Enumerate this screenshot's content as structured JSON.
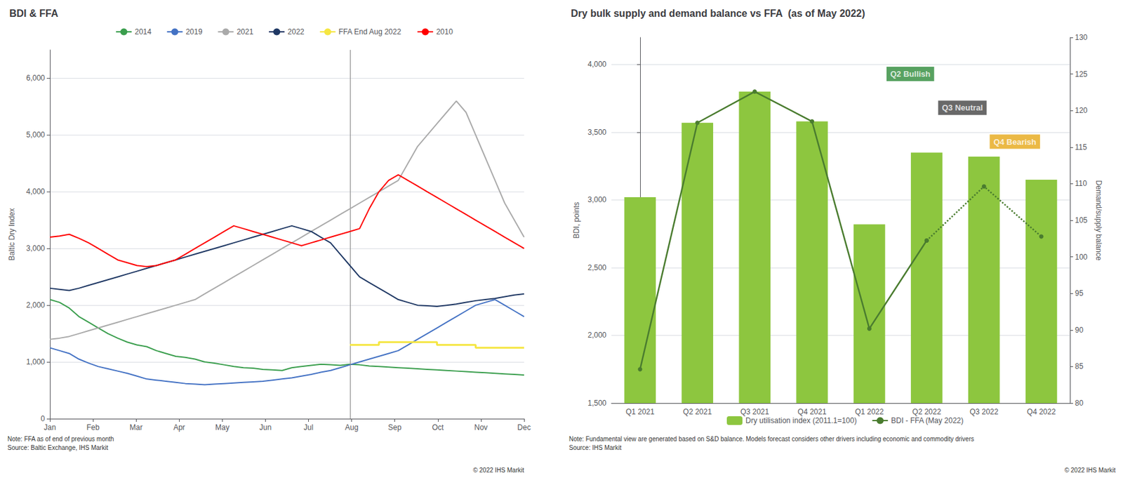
{
  "chart_data": [
    {
      "type": "line",
      "title": "BDI & FFA",
      "ylabel": "Baltic Dry Index",
      "x": [
        0,
        0.22449,
        0.44898,
        0.673469,
        0.897959,
        1.122449,
        1.346939,
        1.571429,
        1.795918,
        2.020408,
        2.244898,
        2.469388,
        2.693878,
        2.918367,
        3.142857,
        3.367347,
        3.591837,
        3.816327,
        4.040816,
        4.265306,
        4.489796,
        4.714286,
        4.938776,
        5.163265,
        5.387755,
        5.612245,
        5.836735,
        6.061224,
        6.285714,
        6.510204,
        6.734694,
        6.959184,
        7.183673,
        7.408163,
        7.632653,
        7.857143,
        8.081633,
        8.306122,
        8.530612,
        8.755102,
        8.979592,
        9.204082,
        9.428571,
        9.653061,
        9.877551,
        10.102041,
        10.326531,
        10.55102,
        10.77551,
        11
      ],
      "xlim": [
        0,
        11
      ],
      "xticks": [
        {
          "value": 0,
          "label": "Jan"
        },
        {
          "value": 1,
          "label": "Feb"
        },
        {
          "value": 2,
          "label": "Mar"
        },
        {
          "value": 3,
          "label": "Apr"
        },
        {
          "value": 4,
          "label": "May"
        },
        {
          "value": 5,
          "label": "Jun"
        },
        {
          "value": 6,
          "label": "Jul"
        },
        {
          "value": 7,
          "label": "Aug"
        },
        {
          "value": 8,
          "label": "Sep"
        },
        {
          "value": 9,
          "label": "Oct"
        },
        {
          "value": 10,
          "label": "Nov"
        },
        {
          "value": 11,
          "label": "Dec"
        }
      ],
      "ylim": [
        0,
        6500
      ],
      "yticks": [
        0,
        {
          "value": 1000,
          "label": "1,000"
        },
        {
          "value": 2000,
          "label": "2,000"
        },
        {
          "value": 3000,
          "label": "3,000"
        },
        {
          "value": 4000,
          "label": "4,000"
        },
        {
          "value": 5000,
          "label": "5,000"
        },
        {
          "value": 6000,
          "label": "6,000"
        }
      ],
      "grid": true,
      "legend": "top",
      "vline_x": 6.959184,
      "series": [
        {
          "name": "2014",
          "color": "#3a9e4d",
          "values": [
            2100,
            2050,
            1950,
            1800,
            1700,
            1600,
            1500,
            1420,
            1350,
            1300,
            1270,
            1200,
            1150,
            1100,
            1080,
            1050,
            1000,
            980,
            950,
            920,
            900,
            890,
            870,
            860,
            850,
            900,
            920,
            940,
            960,
            950,
            940,
            960,
            950,
            930,
            920,
            910,
            900,
            890,
            880,
            870,
            860,
            850,
            840,
            830,
            820,
            810,
            800,
            790,
            780,
            770
          ]
        },
        {
          "name": "2019",
          "color": "#4472c4",
          "values": [
            1250,
            1200,
            1150,
            1050,
            980,
            920,
            880,
            840,
            800,
            750,
            700,
            680,
            660,
            640,
            620,
            610,
            600,
            610,
            620,
            630,
            640,
            650,
            660,
            680,
            700,
            720,
            750,
            780,
            820,
            850,
            900,
            950,
            1000,
            1050,
            1100,
            1150,
            1200,
            1300,
            1400,
            1500,
            1600,
            1700,
            1800,
            1900,
            2000,
            2050,
            2100,
            2000,
            1900,
            1800
          ]
        },
        {
          "name": "2021",
          "color": "#aaaaaa",
          "values": [
            1400,
            1420,
            1450,
            1500,
            1550,
            1600,
            1650,
            1700,
            1750,
            1800,
            1850,
            1900,
            1950,
            2000,
            2050,
            2100,
            2200,
            2300,
            2400,
            2500,
            2600,
            2700,
            2800,
            2900,
            3000,
            3100,
            3200,
            3300,
            3400,
            3500,
            3600,
            3700,
            3800,
            3900,
            4000,
            4100,
            4200,
            4500,
            4800,
            5000,
            5200,
            5400,
            5600,
            5400,
            5000,
            4600,
            4200,
            3800,
            3500,
            3200
          ]
        },
        {
          "name": "2022",
          "color": "#1f3864",
          "values": [
            2300,
            2280,
            2260,
            2300,
            2350,
            2400,
            2450,
            2500,
            2550,
            2600,
            2650,
            2700,
            2750,
            2800,
            2850,
            2900,
            2950,
            3000,
            3050,
            3100,
            3150,
            3200,
            3250,
            3300,
            3350,
            3400,
            3350,
            3300,
            3200,
            3100,
            2900,
            2700,
            2500,
            2400,
            2300,
            2200,
            2100,
            2050,
            2000,
            1990,
            1980,
            2000,
            2020,
            2050,
            2080,
            2100,
            2120,
            2150,
            2180,
            2200
          ]
        },
        {
          "name": "FFA End Aug 2022",
          "color": "#f5e642",
          "type": "step",
          "values": [
            null,
            null,
            null,
            null,
            null,
            null,
            null,
            null,
            null,
            null,
            null,
            null,
            null,
            null,
            null,
            null,
            null,
            null,
            null,
            null,
            null,
            null,
            null,
            null,
            null,
            null,
            null,
            null,
            null,
            null,
            null,
            1300,
            1300,
            1300,
            1350,
            1350,
            1350,
            1350,
            1350,
            1350,
            1300,
            1300,
            1300,
            1300,
            1250,
            1250,
            1250,
            1250,
            1250,
            1250
          ]
        },
        {
          "name": "2010",
          "color": "#ff0000",
          "values": [
            3200,
            3220,
            3250,
            3180,
            3100,
            3000,
            2900,
            2800,
            2750,
            2700,
            2680,
            2700,
            2750,
            2800,
            2900,
            3000,
            3100,
            3200,
            3300,
            3400,
            3350,
            3300,
            3250,
            3200,
            3150,
            3100,
            3050,
            3100,
            3150,
            3200,
            3250,
            3300,
            3350,
            3700,
            4000,
            4200,
            4300,
            4200,
            4100,
            4000,
            3900,
            3800,
            3700,
            3600,
            3500,
            3400,
            3300,
            3200,
            3100,
            3000
          ]
        }
      ],
      "note": "Note: FFA as of end of previous month\nSource: Baltic Exchange, IHS Markit",
      "copyright": "© 2022 IHS Markit"
    },
    {
      "type": "bar",
      "title": "Dry bulk supply and demand balance vs FFA  (as of May 2022)",
      "ylabel": "BDI, points",
      "y2label": "Demand/supply balance",
      "categories": [
        "Q1 2021",
        "Q2 2021",
        "Q3 2021",
        "Q4 2021",
        "Q1 2022",
        "Q2 2022",
        "Q3 2022",
        "Q4 2022"
      ],
      "ylim": [
        1500,
        4200
      ],
      "yticks": [
        {
          "value": 1500,
          "label": "1,500"
        },
        {
          "value": 2000,
          "label": "2,000"
        },
        {
          "value": 2500,
          "label": "2,500"
        },
        {
          "value": 3000,
          "label": "3,000"
        },
        {
          "value": 3500,
          "label": "3,500"
        },
        {
          "value": 4000,
          "label": "4,000"
        }
      ],
      "y2lim": [
        80,
        130
      ],
      "y2ticks": [
        80,
        85,
        90,
        95,
        100,
        105,
        110,
        115,
        120,
        125,
        130
      ],
      "grid": true,
      "legend": "bottom",
      "series": [
        {
          "name": "Dry utilisation index (2011.1=100)",
          "type": "bar",
          "color": "#8dc63f",
          "values": [
            3020,
            3570,
            3800,
            3580,
            2820,
            3350,
            3320,
            3150
          ]
        },
        {
          "name": "BDI - FFA (May 2022)",
          "type": "line",
          "color": "#4a7c2f",
          "marker": "circle",
          "values": [
            1750,
            3570,
            3800,
            3580,
            2050,
            2700,
            null,
            null
          ]
        },
        {
          "name": "BDI - FFA (May 2022)",
          "type": "line",
          "color": "#4a7c2f",
          "marker": "circle",
          "line_style": "dotted",
          "values": [
            null,
            null,
            null,
            null,
            null,
            2700,
            3100,
            2730
          ]
        }
      ],
      "annotations": [
        {
          "text": "Q2 Bullish",
          "color": "#2e8b3a",
          "x": 4.3,
          "y": 3930
        },
        {
          "text": "Q3 Neutral",
          "color": "#444444",
          "x": 5.2,
          "y": 3680
        },
        {
          "text": "Q4 Bearish",
          "color": "#e6a817",
          "x": 6.1,
          "y": 3430
        }
      ],
      "note": "Note: Fundamental view are generated based on S&D balance. Models forecast considers other drivers including economic and commodity drivers\nSource: IHS Markit",
      "copyright": "© 2022 IHS Markit"
    }
  ]
}
